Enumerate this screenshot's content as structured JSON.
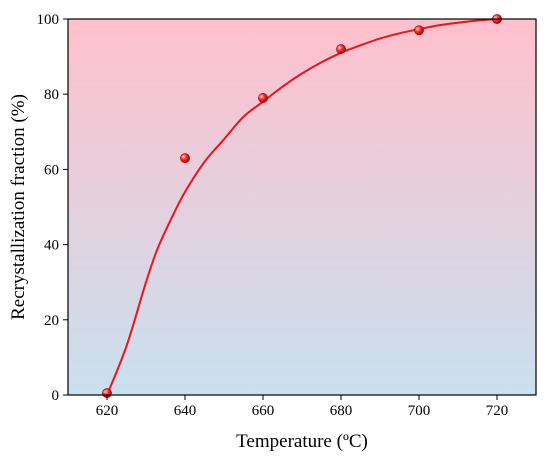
{
  "chart_data": {
    "type": "scatter",
    "xlabel": "Temperature (ºC)",
    "ylabel": "Recrystallization fraction (%)",
    "xlim": [
      610,
      730
    ],
    "ylim": [
      0,
      100
    ],
    "x_ticks": [
      620,
      640,
      660,
      680,
      700,
      720
    ],
    "y_ticks": [
      0,
      20,
      40,
      60,
      80,
      100
    ],
    "background_gradient": {
      "top": "#ffc0cc",
      "bottom": "#c9e0ef"
    },
    "series": [
      {
        "kind": "points",
        "color": "#e8141e",
        "x": [
          620,
          640,
          660,
          680,
          700,
          720
        ],
        "y": [
          0.5,
          63,
          79,
          92,
          97,
          100
        ]
      },
      {
        "kind": "fit-curve",
        "color": "#e8141e",
        "x": [
          620,
          625,
          630,
          633,
          637,
          640,
          645,
          650,
          655,
          660,
          665,
          670,
          675,
          680,
          685,
          690,
          695,
          700,
          705,
          710,
          715,
          720
        ],
        "y": [
          0,
          13,
          30,
          39,
          48,
          54,
          62,
          68,
          74,
          78,
          82,
          85.5,
          88.5,
          91,
          93,
          94.8,
          96.2,
          97.3,
          98.3,
          99,
          99.6,
          100
        ]
      }
    ],
    "grid": false,
    "legend": "none"
  }
}
